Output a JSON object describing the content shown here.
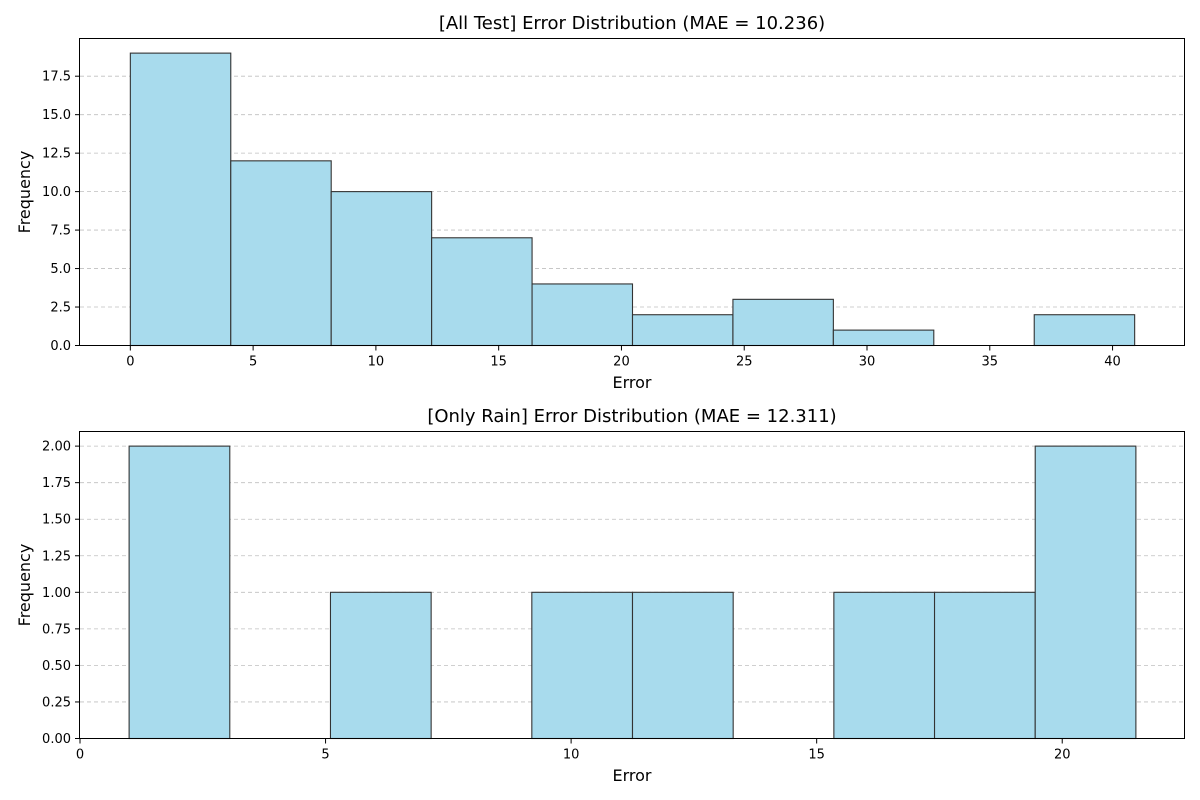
{
  "chart_data": [
    {
      "type": "bar",
      "histogram": true,
      "title": "[All Test] Error Distribution (MAE = 10.236)",
      "xlabel": "Error",
      "ylabel": "Frequency",
      "bin_edges": [
        0,
        4.09,
        8.18,
        12.27,
        16.36,
        20.45,
        24.54,
        28.63,
        32.72,
        36.81,
        40.9
      ],
      "values": [
        19,
        12,
        10,
        7,
        4,
        2,
        3,
        1,
        0,
        2
      ],
      "xlim": [
        -2.05,
        42.95
      ],
      "ylim": [
        0,
        19.95
      ],
      "xticks": [
        0,
        5,
        10,
        15,
        20,
        25,
        30,
        35,
        40
      ],
      "xtick_labels": [
        "0",
        "5",
        "10",
        "15",
        "20",
        "25",
        "30",
        "35",
        "40"
      ],
      "yticks": [
        0,
        2.5,
        5,
        7.5,
        10,
        12.5,
        15,
        17.5
      ],
      "ytick_labels": [
        "0.0",
        "2.5",
        "5.0",
        "7.5",
        "10.0",
        "12.5",
        "15.0",
        "17.5"
      ],
      "grid": "y dashed",
      "bar_color": "#a8dbed",
      "edge_color": "#333333"
    },
    {
      "type": "bar",
      "histogram": true,
      "title": "[Only Rain] Error Distribution (MAE = 12.311)",
      "xlabel": "Error",
      "ylabel": "Frequency",
      "bin_edges": [
        1.0,
        3.05,
        5.1,
        7.15,
        9.2,
        11.25,
        13.3,
        15.35,
        17.4,
        19.45,
        21.5
      ],
      "values": [
        2,
        0,
        1,
        0,
        1,
        1,
        0,
        1,
        1,
        2
      ],
      "xlim": [
        0,
        22.5
      ],
      "ylim": [
        0,
        2.1
      ],
      "xticks": [
        0,
        5,
        10,
        15,
        20
      ],
      "xtick_labels": [
        "0",
        "5",
        "10",
        "15",
        "20"
      ],
      "yticks": [
        0,
        0.25,
        0.5,
        0.75,
        1,
        1.25,
        1.5,
        1.75,
        2
      ],
      "ytick_labels": [
        "0.00",
        "0.25",
        "0.50",
        "0.75",
        "1.00",
        "1.25",
        "1.50",
        "1.75",
        "2.00"
      ],
      "grid": "y dashed",
      "bar_color": "#a8dbed",
      "edge_color": "#333333"
    }
  ]
}
